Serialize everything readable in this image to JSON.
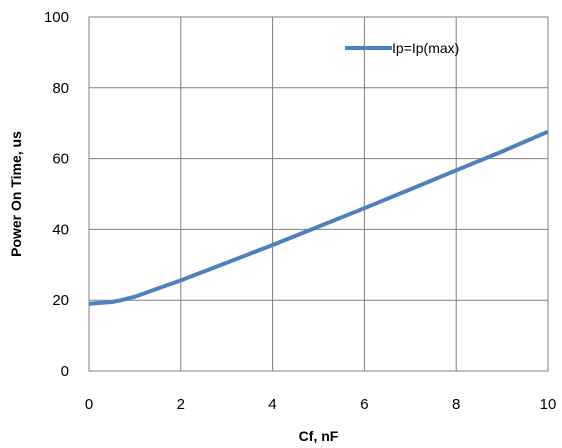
{
  "chart_data": {
    "type": "line",
    "xlabel": "Cf, nF",
    "ylabel": "Power On Time, us",
    "xlim": [
      0,
      10
    ],
    "ylim": [
      0,
      100
    ],
    "xticks": [
      0,
      2,
      4,
      6,
      8,
      10
    ],
    "yticks": [
      0,
      20,
      40,
      60,
      80,
      100
    ],
    "x_tick_labels": [
      "0",
      "2",
      "4",
      "6",
      "8",
      "10"
    ],
    "y_tick_labels": [
      "0",
      "20",
      "40",
      "60",
      "80",
      "100"
    ],
    "grid": true,
    "legend_position": "top-right",
    "series": [
      {
        "name": "Ip=Ip(max)",
        "color": "#4f81bd",
        "x": [
          0,
          0.5,
          0.7,
          1,
          1.5,
          2,
          3,
          4,
          5,
          6,
          7,
          8,
          9,
          10
        ],
        "y": [
          19,
          19.5,
          20,
          21,
          23.3,
          25.6,
          30.6,
          35.6,
          40.8,
          46,
          51.3,
          56.7,
          62,
          67.6
        ]
      }
    ]
  }
}
